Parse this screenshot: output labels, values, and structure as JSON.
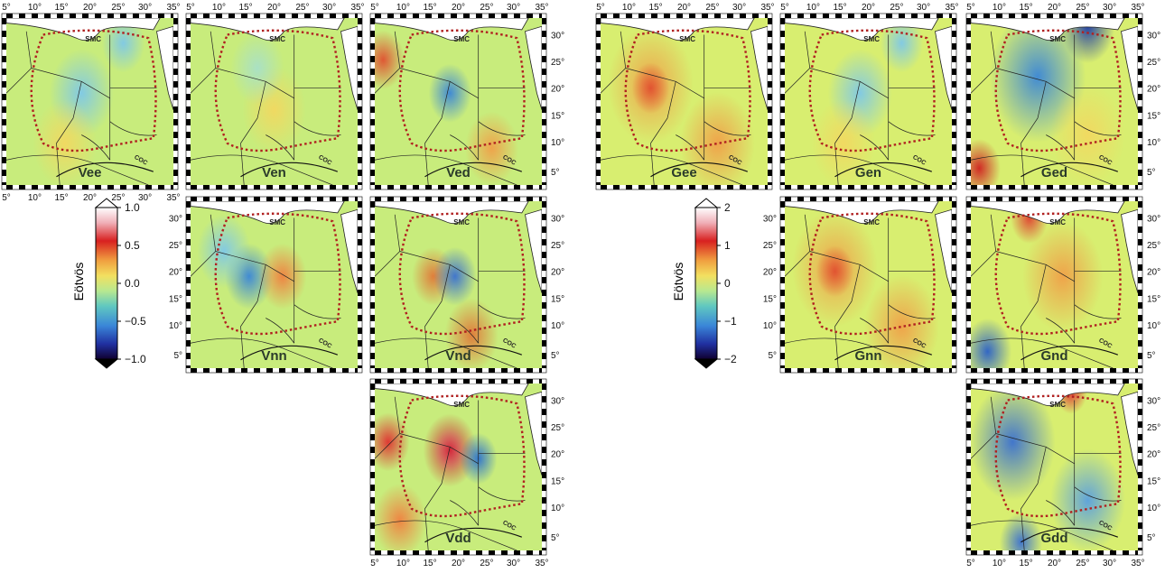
{
  "colorbar_left": {
    "label": "Eötvös",
    "ticks": [
      "1.0",
      "0.5",
      "0.0",
      "−0.5",
      "−1.0"
    ],
    "values": [
      1.0,
      0.5,
      0.0,
      -0.5,
      -1.0
    ],
    "range": [
      -1.0,
      1.0
    ]
  },
  "colorbar_right": {
    "label": "Eötvös",
    "ticks": [
      "2",
      "1",
      "0",
      "−1",
      "−2"
    ],
    "values": [
      2,
      1,
      0,
      -1,
      -2
    ],
    "range": [
      -2,
      2
    ]
  },
  "lon_ticks": [
    "5°",
    "10°",
    "15°",
    "20°",
    "25°",
    "30°",
    "35°"
  ],
  "lat_ticks": [
    "30°",
    "25°",
    "20°",
    "15°",
    "10°",
    "5°"
  ],
  "map_labels": {
    "smc": "SMC",
    "coc": "COC"
  },
  "colors": {
    "base_left": "#c8ec7c",
    "base_right": "#d8ee70",
    "smc_coc_outline": "#b02020",
    "border": "#222222"
  },
  "panels": [
    {
      "id": "vee",
      "label": "Vee",
      "style": "flat-cool"
    },
    {
      "id": "ven",
      "label": "Ven",
      "style": "flat"
    },
    {
      "id": "ved",
      "label": "Ved",
      "style": "warm-west"
    },
    {
      "id": "vnn",
      "label": "Vnn",
      "style": "bands"
    },
    {
      "id": "vnd",
      "label": "Vnd",
      "style": "bands-dual"
    },
    {
      "id": "vdd",
      "label": "Vdd",
      "style": "hot"
    },
    {
      "id": "gee",
      "label": "Gee",
      "style": "warm"
    },
    {
      "id": "gen",
      "label": "Gen",
      "style": "flat-cool"
    },
    {
      "id": "ged",
      "label": "Ged",
      "style": "cool-north"
    },
    {
      "id": "gnn",
      "label": "Gnn",
      "style": "warm"
    },
    {
      "id": "gnd",
      "label": "Gnd",
      "style": "warm-north"
    },
    {
      "id": "gdd",
      "label": "Gdd",
      "style": "cool"
    }
  ]
}
